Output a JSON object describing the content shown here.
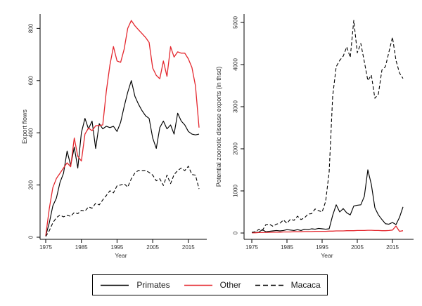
{
  "figure": {
    "background": "#ffffff",
    "axis_color": "#000000",
    "text_color": "#303030",
    "accent_red": "#e4272e",
    "line_black": "#000000"
  },
  "legend": {
    "items": [
      {
        "label": "Primates",
        "line": "solid",
        "color": "#000000"
      },
      {
        "label": "Other",
        "line": "solid",
        "color": "#e4272e"
      },
      {
        "label": "Macaca",
        "line": "dashed",
        "color": "#000000"
      }
    ]
  },
  "years": [
    1975,
    1976,
    1977,
    1978,
    1979,
    1980,
    1981,
    1982,
    1983,
    1984,
    1985,
    1986,
    1987,
    1988,
    1989,
    1990,
    1991,
    1992,
    1993,
    1994,
    1995,
    1996,
    1997,
    1998,
    1999,
    2000,
    2001,
    2002,
    2003,
    2004,
    2005,
    2006,
    2007,
    2008,
    2009,
    2010,
    2011,
    2012,
    2013,
    2014,
    2015,
    2016,
    2017,
    2018
  ],
  "chart_data": [
    {
      "type": "line",
      "panel": "left",
      "title": "",
      "xlabel": "Year",
      "ylabel": "Export flows",
      "xticks": [
        1975,
        1985,
        1995,
        2005,
        2015
      ],
      "yticks": [
        0,
        200,
        400,
        600,
        800
      ],
      "xlim": [
        1973.5,
        2020
      ],
      "ylim": [
        0,
        860
      ],
      "grid": false,
      "series": [
        {
          "name": "Primates",
          "color": "#000000",
          "dash": "solid",
          "values": [
            5,
            55,
            120,
            150,
            210,
            245,
            330,
            275,
            345,
            265,
            400,
            455,
            415,
            445,
            340,
            435,
            415,
            425,
            420,
            425,
            405,
            440,
            500,
            555,
            600,
            540,
            510,
            485,
            465,
            455,
            380,
            340,
            420,
            445,
            415,
            430,
            395,
            475,
            445,
            430,
            405,
            395,
            392,
            395
          ]
        },
        {
          "name": "Other",
          "color": "#e4272e",
          "dash": "solid",
          "values": [
            5,
            110,
            190,
            225,
            245,
            265,
            285,
            270,
            380,
            310,
            292,
            395,
            418,
            408,
            427,
            428,
            430,
            560,
            660,
            730,
            675,
            670,
            720,
            800,
            830,
            810,
            795,
            780,
            765,
            746,
            648,
            620,
            607,
            675,
            616,
            730,
            690,
            710,
            705,
            705,
            683,
            650,
            580,
            420
          ]
        },
        {
          "name": "Macaca",
          "color": "#000000",
          "dash": "dashed",
          "values": [
            3,
            25,
            55,
            75,
            85,
            78,
            84,
            80,
            95,
            90,
            103,
            100,
            116,
            111,
            130,
            124,
            143,
            160,
            178,
            170,
            197,
            200,
            205,
            192,
            224,
            246,
            256,
            255,
            256,
            248,
            238,
            216,
            224,
            198,
            238,
            205,
            240,
            255,
            265,
            255,
            272,
            240,
            238,
            185
          ]
        }
      ]
    },
    {
      "type": "line",
      "panel": "right",
      "title": "",
      "xlabel": "Year",
      "ylabel": "Potential zoonotic disease exports (in thsd)",
      "xticks": [
        1975,
        1985,
        1995,
        2005,
        2015
      ],
      "yticks": [
        0,
        1000,
        2000,
        3000,
        4000,
        5000
      ],
      "xlim": [
        1973.5,
        2020
      ],
      "ylim": [
        0,
        5200
      ],
      "grid": false,
      "series": [
        {
          "name": "Primates",
          "color": "#000000",
          "dash": "solid",
          "values": [
            10,
            15,
            20,
            80,
            30,
            40,
            50,
            60,
            50,
            60,
            80,
            70,
            60,
            80,
            60,
            90,
            80,
            100,
            90,
            110,
            100,
            90,
            100,
            420,
            670,
            500,
            580,
            480,
            430,
            640,
            660,
            670,
            870,
            1500,
            1150,
            600,
            430,
            320,
            220,
            210,
            250,
            200,
            370,
            620
          ]
        },
        {
          "name": "Other",
          "color": "#e4272e",
          "dash": "solid",
          "values": [
            5,
            5,
            10,
            10,
            15,
            15,
            20,
            20,
            20,
            25,
            25,
            25,
            30,
            30,
            30,
            35,
            35,
            35,
            40,
            40,
            40,
            40,
            45,
            45,
            50,
            50,
            50,
            55,
            55,
            55,
            60,
            60,
            60,
            65,
            65,
            60,
            60,
            55,
            55,
            60,
            70,
            165,
            40,
            55
          ]
        },
        {
          "name": "Macaca",
          "color": "#000000",
          "dash": "dashed",
          "values": [
            15,
            30,
            85,
            60,
            200,
            210,
            160,
            210,
            230,
            310,
            230,
            330,
            300,
            400,
            320,
            360,
            450,
            460,
            570,
            530,
            500,
            750,
            1450,
            3250,
            3950,
            4100,
            4200,
            4420,
            4170,
            5050,
            4280,
            4500,
            4070,
            3620,
            3750,
            3200,
            3300,
            3870,
            3950,
            4300,
            4650,
            4100,
            3800,
            3670
          ]
        }
      ]
    }
  ]
}
